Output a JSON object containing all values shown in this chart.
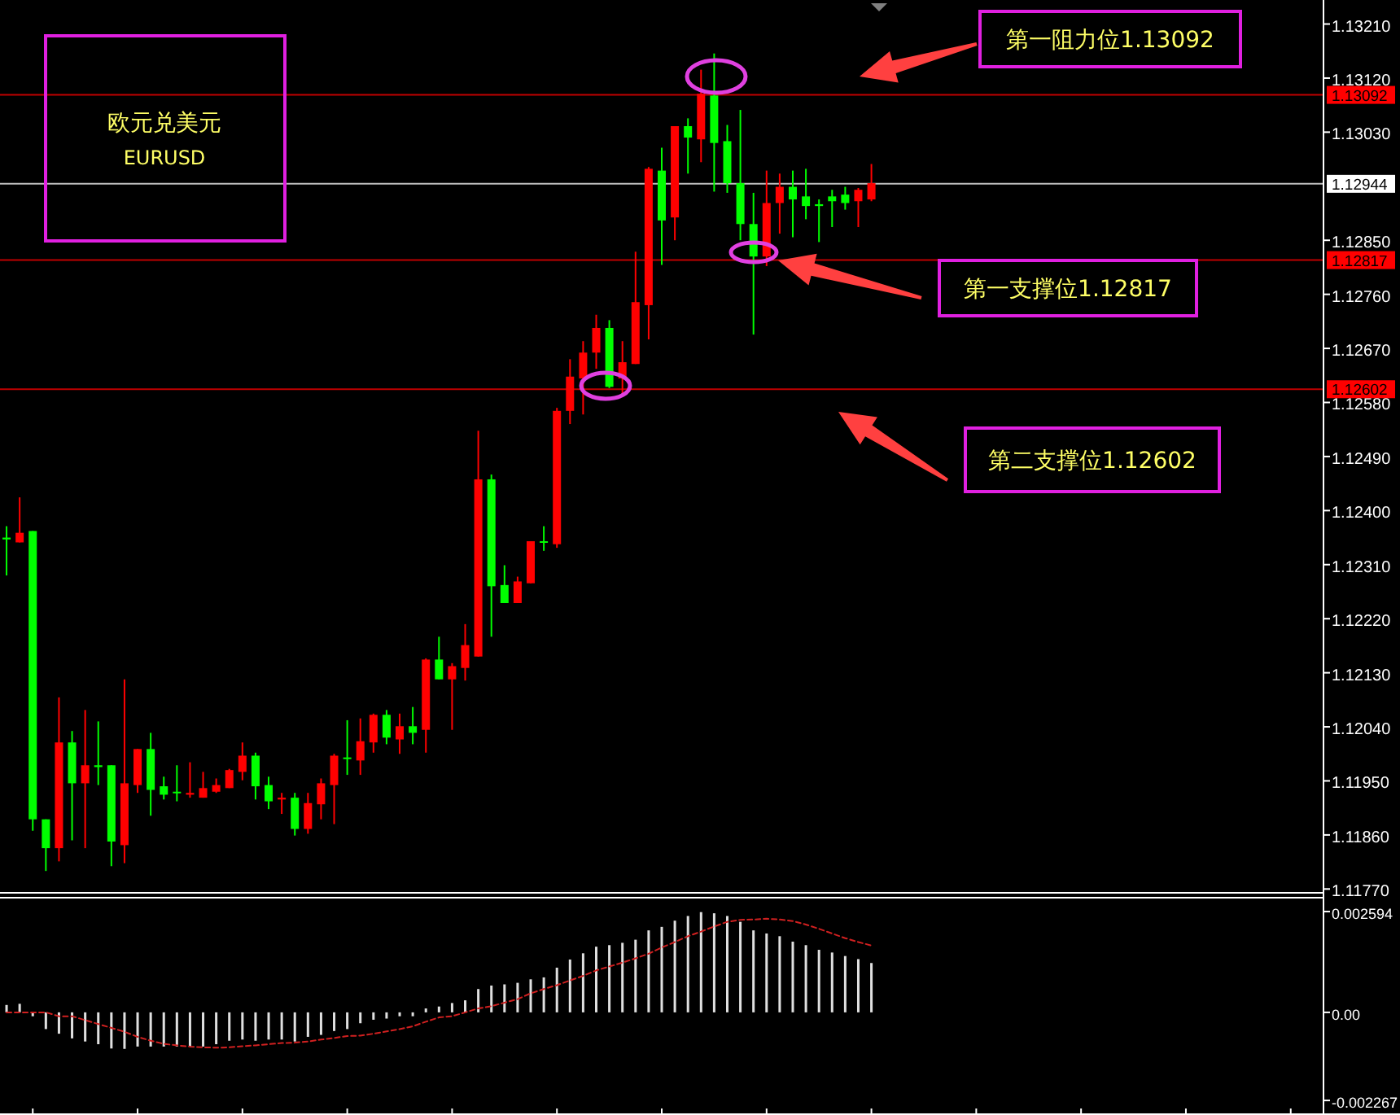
{
  "chart_data": [
    {
      "type": "candlestick",
      "title": "欧元兑美元",
      "subtitle": "EURUSD",
      "categories": [
        null,
        null,
        null,
        null,
        null,
        null,
        null,
        null,
        null,
        null,
        null,
        null,
        null,
        null,
        null,
        null,
        null,
        null,
        null,
        null,
        null,
        null,
        null,
        null,
        null,
        null,
        null,
        null,
        null,
        null,
        null,
        null,
        null,
        null,
        null,
        null,
        null,
        null,
        null,
        null,
        null,
        null,
        null,
        null,
        null,
        null,
        null,
        null,
        null,
        null,
        null,
        null,
        null,
        null,
        null,
        null,
        null,
        null,
        null,
        null,
        null,
        null,
        null,
        null,
        null,
        null,
        null,
        null,
        null,
        null,
        null,
        null,
        null,
        null,
        null,
        null,
        null,
        null,
        null,
        null,
        null,
        null,
        null,
        null,
        null,
        null,
        null,
        null,
        null,
        null,
        null,
        null,
        null,
        null,
        null,
        null,
        null,
        null,
        null,
        null,
        null
      ],
      "ohlc": [
        [
          1.12355,
          1.12374,
          1.12292,
          1.12352
        ],
        [
          1.12347,
          1.12422,
          1.12347,
          1.12363
        ],
        [
          1.12366,
          1.12366,
          1.11867,
          1.11886
        ],
        [
          1.11886,
          1.11886,
          1.118,
          1.11838
        ],
        [
          1.11838,
          1.12089,
          1.11816,
          1.12014
        ],
        [
          1.12014,
          1.12033,
          1.11851,
          1.11946
        ],
        [
          1.11946,
          1.12068,
          1.11838,
          1.11976
        ],
        [
          1.11976,
          1.12049,
          1.11943,
          1.11973
        ],
        [
          1.11976,
          1.11976,
          1.11808,
          1.11849
        ],
        [
          1.11843,
          1.12119,
          1.11813,
          1.11946
        ],
        [
          1.11943,
          1.12003,
          1.1193,
          1.12003
        ],
        [
          1.12003,
          1.1203,
          1.11892,
          1.11935
        ],
        [
          1.11941,
          1.11957,
          1.11919,
          1.11927
        ],
        [
          1.11932,
          1.11976,
          1.11916,
          1.1193
        ],
        [
          1.11927,
          1.11981,
          1.11922,
          1.1193
        ],
        [
          1.11922,
          1.11965,
          1.11922,
          1.11938
        ],
        [
          1.11932,
          1.11954,
          1.1193,
          1.11943
        ],
        [
          1.11938,
          1.1197,
          1.11938,
          1.11968
        ],
        [
          1.11965,
          1.12014,
          1.11951,
          1.11992
        ],
        [
          1.11992,
          1.11997,
          1.11919,
          1.11941
        ],
        [
          1.11943,
          1.11957,
          1.11903,
          1.11916
        ],
        [
          1.11919,
          1.1193,
          1.11895,
          1.11922
        ],
        [
          1.11922,
          1.1193,
          1.11859,
          1.1187
        ],
        [
          1.1187,
          1.1193,
          1.11862,
          1.11913
        ],
        [
          1.11911,
          1.11954,
          1.11886,
          1.11946
        ],
        [
          1.11943,
          1.11995,
          1.11878,
          1.11992
        ],
        [
          1.11989,
          1.12051,
          1.1196,
          1.11987
        ],
        [
          1.11984,
          1.12054,
          1.1196,
          1.12016
        ],
        [
          1.12014,
          1.12062,
          1.11997,
          1.1206
        ],
        [
          1.1206,
          1.12068,
          1.12011,
          1.12022
        ],
        [
          1.12019,
          1.12062,
          1.11995,
          1.12041
        ],
        [
          1.12041,
          1.12073,
          1.12011,
          1.1203
        ],
        [
          1.12035,
          1.12154,
          1.11997,
          1.12152
        ],
        [
          1.12152,
          1.1219,
          1.12119,
          1.12119
        ],
        [
          1.12119,
          1.12146,
          1.12035,
          1.12141
        ],
        [
          1.12138,
          1.12211,
          1.12117,
          1.12176
        ],
        [
          1.12157,
          1.12533,
          1.12157,
          1.12452
        ],
        [
          1.12452,
          1.1246,
          1.1219,
          1.12274
        ],
        [
          1.12276,
          1.12309,
          1.12246,
          1.12246
        ],
        [
          1.12246,
          1.1229,
          1.12246,
          1.12282
        ],
        [
          1.12279,
          1.12349,
          1.12279,
          1.12349
        ],
        [
          1.12349,
          1.12374,
          1.12333,
          1.12347
        ],
        [
          1.12344,
          1.12571,
          1.12338,
          1.12566
        ],
        [
          1.12566,
          1.12652,
          1.12544,
          1.12623
        ],
        [
          1.1262,
          1.12682,
          1.1256,
          1.12663
        ],
        [
          1.12663,
          1.12726,
          1.12636,
          1.12704
        ],
        [
          1.12704,
          1.12717,
          1.12604,
          1.12606
        ],
        [
          1.1262,
          1.12682,
          1.12593,
          1.12647
        ],
        [
          1.12644,
          1.12831,
          1.12644,
          1.12747
        ],
        [
          1.12742,
          1.12972,
          1.12685,
          1.12969
        ],
        [
          1.12966,
          1.13004,
          1.12809,
          1.12883
        ],
        [
          1.12888,
          1.1304,
          1.1285,
          1.1304
        ],
        [
          1.1304,
          1.13053,
          1.12961,
          1.13021
        ],
        [
          1.13018,
          1.13134,
          1.1298,
          1.13094
        ],
        [
          1.13091,
          1.13161,
          1.12931,
          1.13012
        ],
        [
          1.13015,
          1.13042,
          1.12929,
          1.12945
        ],
        [
          1.12945,
          1.13067,
          1.1285,
          1.12877
        ],
        [
          1.12877,
          1.12929,
          1.12693,
          1.12823
        ],
        [
          1.12823,
          1.12966,
          1.12807,
          1.12912
        ],
        [
          1.12912,
          1.12961,
          1.12861,
          1.12939
        ],
        [
          1.12939,
          1.12966,
          1.12855,
          1.12918
        ],
        [
          1.12923,
          1.12969,
          1.12885,
          1.12907
        ],
        [
          1.1291,
          1.12918,
          1.12847,
          1.12907
        ],
        [
          1.12923,
          1.12934,
          1.12872,
          1.12915
        ],
        [
          1.12926,
          1.12939,
          1.12901,
          1.12912
        ],
        [
          1.12915,
          1.12937,
          1.12872,
          1.12934
        ],
        [
          1.12918,
          1.12977,
          1.12915,
          1.12945
        ],
        null,
        null,
        null,
        null,
        null,
        null,
        null,
        null,
        null,
        null,
        null,
        null,
        null,
        null,
        null,
        null,
        null,
        null,
        null,
        null,
        null,
        null,
        null,
        null,
        null,
        null,
        null,
        null,
        null,
        null,
        null,
        null,
        null,
        null
      ],
      "colors": [
        "#00ff00",
        "#ff0000",
        "#00ff00",
        "#00ff00",
        "#ff0000",
        "#00ff00",
        "#ff0000",
        "#00ff00",
        "#00ff00",
        "#ff0000",
        "#ff0000",
        "#00ff00",
        "#00ff00",
        "#00ff00",
        "#ff0000",
        "#ff0000",
        "#ff0000",
        "#ff0000",
        "#ff0000",
        "#00ff00",
        "#00ff00",
        "#ff0000",
        "#00ff00",
        "#ff0000",
        "#ff0000",
        "#ff0000",
        "#00ff00",
        "#ff0000",
        "#ff0000",
        "#00ff00",
        "#ff0000",
        "#00ff00",
        "#ff0000",
        "#00ff00",
        "#ff0000",
        "#ff0000",
        "#ff0000",
        "#00ff00",
        "#00ff00",
        "#ff0000",
        "#ff0000",
        "#00ff00",
        "#ff0000",
        "#ff0000",
        "#ff0000",
        "#ff0000",
        "#00ff00",
        "#ff0000",
        "#ff0000",
        "#ff0000",
        "#00ff00",
        "#ff0000",
        "#00ff00",
        "#ff0000",
        "#00ff00",
        "#00ff00",
        "#00ff00",
        "#00ff00",
        "#ff0000",
        "#ff0000",
        "#00ff00",
        "#00ff00",
        "#00ff00",
        "#00ff00",
        "#00ff00",
        "#ff0000",
        "#ff0000",
        null,
        null,
        null,
        null,
        null,
        null,
        null,
        null,
        null,
        null,
        null,
        null,
        null,
        null,
        null,
        null,
        null,
        null,
        null,
        null,
        null,
        null,
        null,
        null,
        null,
        null,
        null,
        null,
        null,
        null,
        null,
        null,
        null,
        null
      ],
      "ylim": [
        1.11765,
        1.1325
      ],
      "yticks": [
        {
          "value": 1.1321,
          "label": "1.13210"
        },
        {
          "value": 1.1312,
          "label": "1.13120"
        },
        {
          "value": 1.1303,
          "label": "1.13030"
        },
        {
          "value": 1.1285,
          "label": "1.12850"
        },
        {
          "value": 1.1276,
          "label": "1.12760"
        },
        {
          "value": 1.1267,
          "label": "1.12670"
        },
        {
          "value": 1.1258,
          "label": "1.12580"
        },
        {
          "value": 1.1249,
          "label": "1.12490"
        },
        {
          "value": 1.124,
          "label": "1.12400"
        },
        {
          "value": 1.1231,
          "label": "1.12310"
        },
        {
          "value": 1.1222,
          "label": "1.12220"
        },
        {
          "value": 1.1213,
          "label": "1.12130"
        },
        {
          "value": 1.1204,
          "label": "1.12040"
        },
        {
          "value": 1.1195,
          "label": "1.11950"
        },
        {
          "value": 1.1186,
          "label": "1.11860"
        },
        {
          "value": 1.1177,
          "label": "1.11770"
        }
      ],
      "ref_lines": [
        {
          "axis": "y",
          "value": 1.13092,
          "label": "1.13092",
          "color": "#ff0000"
        },
        {
          "axis": "y",
          "value": 1.12944,
          "label": "1.12944",
          "color": "#ffffff"
        },
        {
          "axis": "y",
          "value": 1.12817,
          "label": "1.12817",
          "color": "#ff0000"
        },
        {
          "axis": "y",
          "value": 1.12602,
          "label": "1.12602",
          "color": "#ff0000"
        }
      ],
      "annotations": [
        "第一阻力位1.13092",
        "第一支撑位1.12817",
        "第二支撑位1.12602"
      ]
    },
    {
      "type": "bar",
      "categories": [
        null,
        null,
        null,
        null,
        null,
        null,
        null,
        null,
        null,
        null,
        null,
        null,
        null,
        null,
        null,
        null,
        null,
        null,
        null,
        null,
        null,
        null,
        null,
        null,
        null,
        null,
        null,
        null,
        null,
        null,
        null,
        null,
        null,
        null,
        null,
        null,
        null,
        null,
        null,
        null,
        null,
        null,
        null,
        null,
        null,
        null,
        null,
        null,
        null,
        null,
        null,
        null,
        null,
        null,
        null,
        null,
        null,
        null,
        null,
        null,
        null,
        null,
        null,
        null,
        null,
        null,
        null,
        null,
        null,
        null,
        null,
        null,
        null,
        null,
        null,
        null,
        null,
        null,
        null,
        null,
        null,
        null,
        null,
        null,
        null,
        null,
        null,
        null,
        null,
        null,
        null,
        null,
        null,
        null,
        null,
        null,
        null,
        null,
        null,
        null,
        null
      ],
      "series": [
        {
          "type": "bar",
          "color": "#e0e0e0",
          "values": [
            0.00019,
            0.00022,
            -0.0001,
            -0.00043,
            -0.00055,
            -0.00067,
            -0.00075,
            -0.00082,
            -0.00093,
            -0.00094,
            -0.00088,
            -0.00088,
            -0.00088,
            -0.00088,
            -0.00088,
            -0.00088,
            -0.00082,
            -0.00073,
            -0.0007,
            -0.00073,
            -0.0007,
            -0.0007,
            -0.00075,
            -0.00063,
            -0.00058,
            -0.00048,
            -0.00043,
            -0.00028,
            -0.00019,
            -0.00016,
            -0.0001,
            -0.0001,
            0.0001,
            0.00015,
            0.00024,
            0.00031,
            0.0006,
            0.00069,
            0.00072,
            0.00076,
            0.00085,
            0.0009,
            0.00115,
            0.00136,
            0.00152,
            0.00169,
            0.00173,
            0.00179,
            0.00187,
            0.00211,
            0.0022,
            0.00236,
            0.00248,
            0.00258,
            0.00255,
            0.00248,
            0.00233,
            0.00211,
            0.00203,
            0.00196,
            0.00182,
            0.00173,
            0.00161,
            0.00154,
            0.00145,
            0.00137,
            0.00127,
            null,
            null,
            null,
            null,
            null,
            null,
            null,
            null,
            null,
            null,
            null,
            null,
            null,
            null,
            null,
            null,
            null,
            null,
            null,
            null,
            null,
            null,
            null,
            null,
            null,
            null,
            null,
            null,
            null,
            null,
            null,
            null,
            null,
            null
          ]
        },
        {
          "type": "line",
          "color": "#d02020",
          "line_style": "dashed",
          "values": [
            0,
            0,
            0,
            0,
            -0.0001,
            -0.0001,
            -0.0002,
            -0.0003,
            -0.0004,
            -0.0005,
            -0.00063,
            -0.00073,
            -0.00081,
            -0.00085,
            -0.00088,
            -0.0009,
            -0.00091,
            -0.0009,
            -0.00087,
            -0.00085,
            -0.00082,
            -0.00079,
            -0.00078,
            -0.00075,
            -0.0007,
            -0.00066,
            -0.00061,
            -0.0006,
            -0.00055,
            -0.00049,
            -0.00043,
            -0.00036,
            -0.00024,
            -0.00013,
            -0.0001,
            0,
            0.0001,
            0.00016,
            0.00025,
            0.00034,
            0.00049,
            0.0006,
            0.0007,
            0.00082,
            0.00094,
            0.00108,
            0.00118,
            0.00128,
            0.00139,
            0.00151,
            0.00167,
            0.00181,
            0.00196,
            0.00208,
            0.00221,
            0.00233,
            0.00238,
            0.00239,
            0.00241,
            0.00239,
            0.00235,
            0.00226,
            0.00215,
            0.00203,
            0.00191,
            0.00181,
            0.00172,
            null,
            null,
            null,
            null,
            null,
            null,
            null,
            null,
            null,
            null,
            null,
            null,
            null,
            null,
            null,
            null,
            null,
            null,
            null,
            null,
            null,
            null,
            null,
            null,
            null,
            null,
            null,
            null,
            null,
            null,
            null,
            null,
            null,
            null
          ]
        }
      ],
      "ylim": [
        -0.0026,
        0.00293
      ],
      "yticks": [
        {
          "value": 0.002594,
          "label": "0.002594"
        },
        {
          "value": 0,
          "label": "0.00"
        },
        {
          "value": -0.002267,
          "label": "-0.002267"
        }
      ]
    }
  ]
}
